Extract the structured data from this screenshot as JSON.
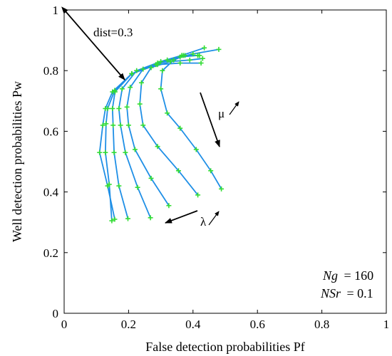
{
  "chart_data": {
    "type": "line",
    "title": "",
    "xlabel": "False detection probabilities Pf",
    "ylabel": "Well detection probabilities Pw",
    "xlim": [
      0,
      1
    ],
    "ylim": [
      0,
      1
    ],
    "x_ticks": [
      "0",
      "0.2",
      "0.4",
      "0.6",
      "0.8",
      "1"
    ],
    "y_ticks": [
      "0",
      "0.2",
      "0.4",
      "0.6",
      "0.8",
      "1"
    ],
    "grid": false,
    "colors": {
      "line": "#1f8fe6",
      "marker": "#33dd33",
      "axis": "#000000"
    },
    "annotations": {
      "dist_label": "dist=0.3",
      "mu_label": "μ",
      "lambda_label": "λ",
      "ng_label": "Ng",
      "ng_value": "= 160",
      "nsr_label": "NSr",
      "nsr_value": "= 0.1"
    },
    "series": [
      {
        "points": [
          [
            0.148,
            0.305
          ],
          [
            0.14,
            0.425
          ],
          [
            0.128,
            0.53
          ],
          [
            0.13,
            0.625
          ],
          [
            0.135,
            0.675
          ],
          [
            0.157,
            0.735
          ],
          [
            0.21,
            0.79
          ],
          [
            0.285,
            0.82
          ],
          [
            0.36,
            0.845
          ],
          [
            0.415,
            0.85
          ]
        ]
      },
      {
        "points": [
          [
            0.157,
            0.31
          ],
          [
            0.135,
            0.42
          ],
          [
            0.11,
            0.53
          ],
          [
            0.12,
            0.62
          ],
          [
            0.128,
            0.675
          ],
          [
            0.15,
            0.73
          ],
          [
            0.21,
            0.79
          ],
          [
            0.29,
            0.825
          ],
          [
            0.37,
            0.85
          ],
          [
            0.42,
            0.85
          ]
        ]
      },
      {
        "points": [
          [
            0.198,
            0.312
          ],
          [
            0.17,
            0.42
          ],
          [
            0.155,
            0.53
          ],
          [
            0.152,
            0.62
          ],
          [
            0.15,
            0.675
          ],
          [
            0.158,
            0.73
          ],
          [
            0.21,
            0.79
          ],
          [
            0.29,
            0.82
          ],
          [
            0.36,
            0.825
          ],
          [
            0.425,
            0.825
          ]
        ]
      },
      {
        "points": [
          [
            0.268,
            0.315
          ],
          [
            0.228,
            0.415
          ],
          [
            0.19,
            0.53
          ],
          [
            0.175,
            0.62
          ],
          [
            0.17,
            0.675
          ],
          [
            0.18,
            0.74
          ],
          [
            0.225,
            0.8
          ],
          [
            0.3,
            0.83
          ],
          [
            0.365,
            0.85
          ],
          [
            0.435,
            0.875
          ]
        ]
      },
      {
        "points": [
          [
            0.325,
            0.355
          ],
          [
            0.27,
            0.445
          ],
          [
            0.22,
            0.54
          ],
          [
            0.2,
            0.62
          ],
          [
            0.195,
            0.68
          ],
          [
            0.205,
            0.745
          ],
          [
            0.245,
            0.805
          ],
          [
            0.32,
            0.835
          ],
          [
            0.4,
            0.855
          ],
          [
            0.48,
            0.87
          ]
        ]
      },
      {
        "points": [
          [
            0.415,
            0.39
          ],
          [
            0.355,
            0.47
          ],
          [
            0.29,
            0.55
          ],
          [
            0.245,
            0.62
          ],
          [
            0.235,
            0.69
          ],
          [
            0.24,
            0.76
          ],
          [
            0.27,
            0.81
          ],
          [
            0.33,
            0.83
          ],
          [
            0.39,
            0.835
          ],
          [
            0.43,
            0.84
          ]
        ]
      },
      {
        "points": [
          [
            0.488,
            0.41
          ],
          [
            0.455,
            0.47
          ],
          [
            0.41,
            0.54
          ],
          [
            0.36,
            0.61
          ],
          [
            0.32,
            0.66
          ],
          [
            0.3,
            0.74
          ],
          [
            0.305,
            0.8
          ],
          [
            0.34,
            0.835
          ],
          [
            0.375,
            0.85
          ],
          [
            0.415,
            0.85
          ]
        ]
      }
    ]
  }
}
